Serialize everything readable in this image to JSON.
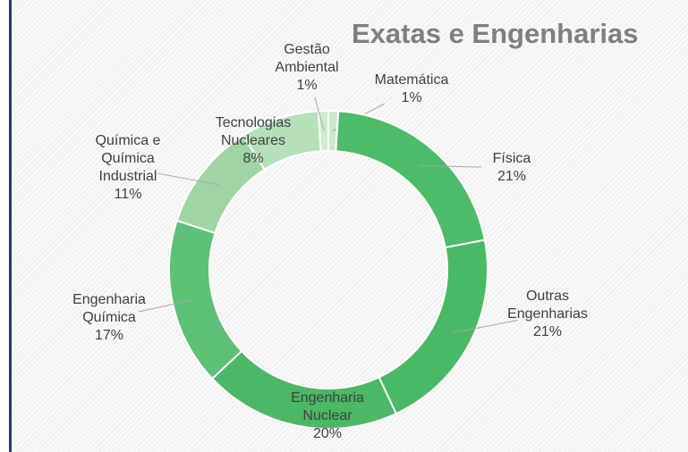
{
  "chart_data": {
    "type": "pie",
    "donut": true,
    "title": "Exatas e Engenharias",
    "categories": [
      "Matemática",
      "Física",
      "Outras Engenharias",
      "Engenharia Nuclear",
      "Engenharia Química",
      "Química e Química Industrial",
      "Tecnologias Nucleares",
      "Gestão Ambiental"
    ],
    "values": [
      1,
      21,
      21,
      20,
      17,
      11,
      8,
      1
    ],
    "value_labels": [
      "1%",
      "21%",
      "21%",
      "20%",
      "17%",
      "11%",
      "8%",
      "1%"
    ],
    "colors": [
      "#c9e8cc",
      "#4cbc68",
      "#48b964",
      "#4ab866",
      "#5cc177",
      "#9fd4a6",
      "#b6dfba",
      "#cfeacf"
    ]
  }
}
